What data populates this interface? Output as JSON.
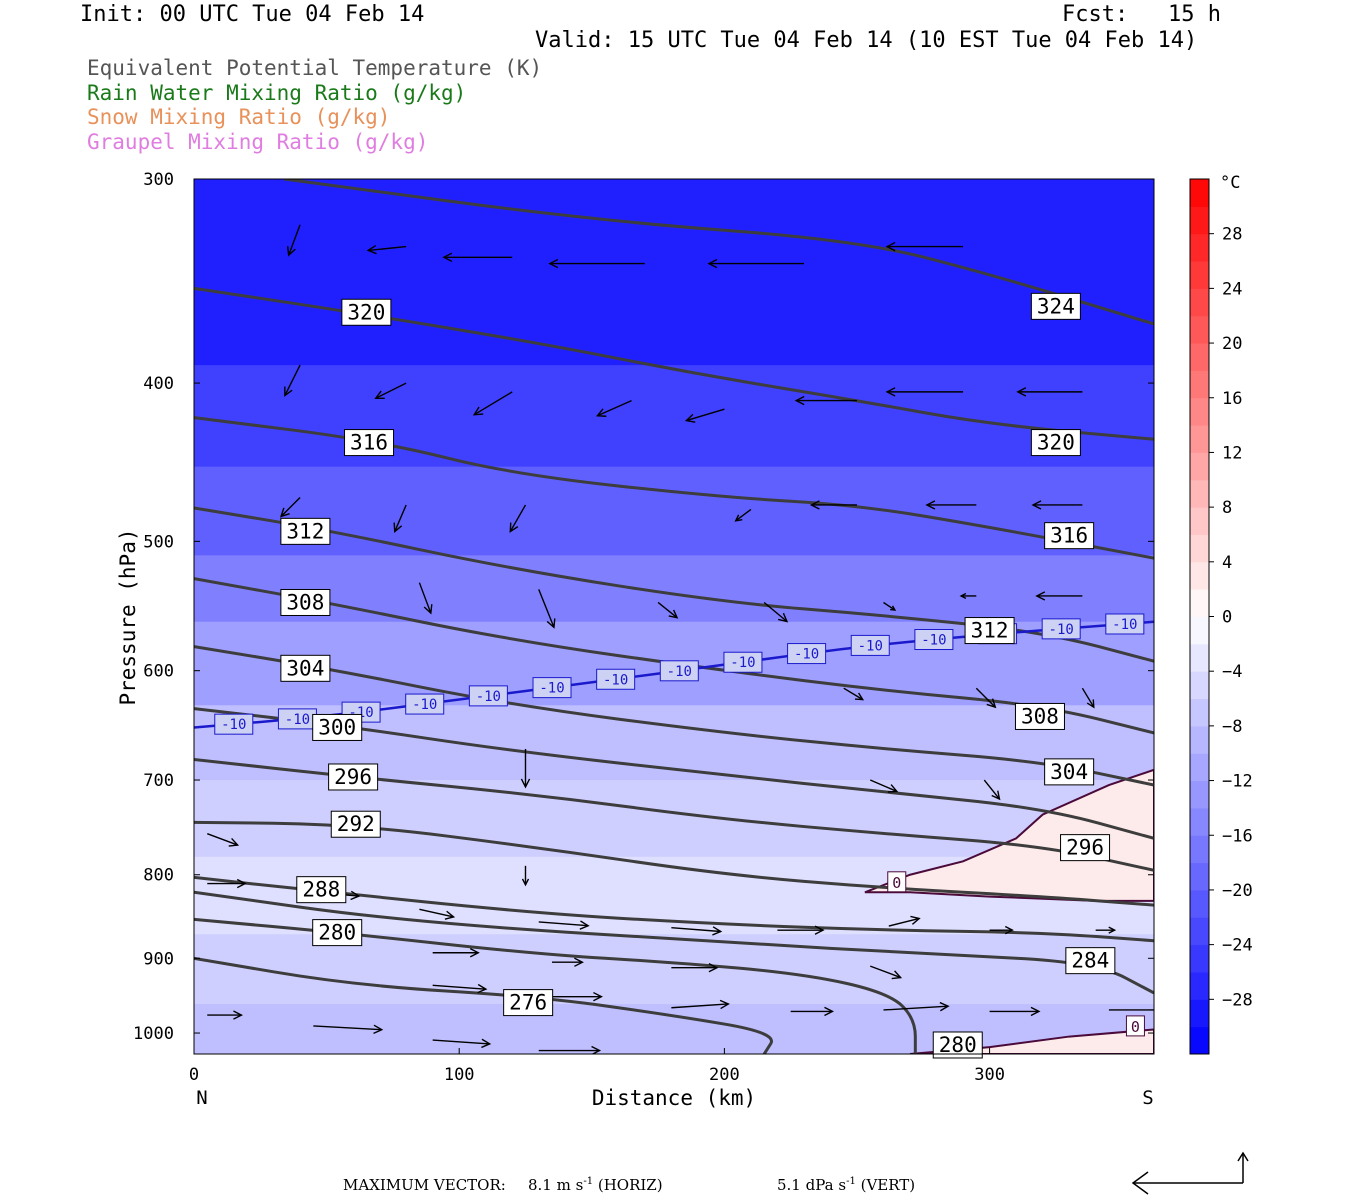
{
  "header": {
    "init": "Init: 00 UTC Tue 04 Feb 14",
    "fcst": "Fcst:   15 h",
    "valid": "Valid: 15 UTC Tue 04 Feb 14 (10 EST Tue 04 Feb 14)"
  },
  "fields": [
    {
      "label": "Equivalent Potential Temperature (K)",
      "color": "#555555"
    },
    {
      "label": "Rain Water Mixing Ratio (g/kg)",
      "color": "#1a7a1a"
    },
    {
      "label": "Snow Mixing Ratio (g/kg)",
      "color": "#e8915a"
    },
    {
      "label": "Graupel Mixing Ratio (g/kg)",
      "color": "#e07de0"
    }
  ],
  "footer": {
    "label": "MAXIMUM VECTOR:",
    "horiz_value": "8.1 m s",
    "horiz_exp": "-1",
    "horiz_unit": "(HORIZ)",
    "vert_value": "5.1 dPa s",
    "vert_exp": "-1",
    "vert_unit": "(VERT)"
  },
  "chart_data": {
    "type": "cross-section",
    "xlabel": "Distance (km)",
    "ylabel": "Pressure (hPa)",
    "xlim": [
      0,
      362
    ],
    "ylim": [
      300,
      1030
    ],
    "y_scale": "log",
    "x_ticks": [
      0,
      100,
      200,
      300
    ],
    "y_ticks": [
      300,
      400,
      500,
      600,
      700,
      800,
      900,
      1000
    ],
    "x_end_labels": {
      "left": "N",
      "right": "S"
    },
    "colorbar": {
      "unit": "°C",
      "levels": [
        -32,
        -30,
        -28,
        -26,
        -24,
        -22,
        -20,
        -18,
        -16,
        -14,
        -12,
        -10,
        -8,
        -6,
        -4,
        -2,
        0,
        2,
        4,
        6,
        8,
        10,
        12,
        14,
        16,
        18,
        20,
        22,
        24,
        26,
        28,
        30,
        32
      ],
      "tick_labels": [
        -28,
        -24,
        -20,
        -16,
        -12,
        -8,
        -4,
        0,
        4,
        8,
        12,
        16,
        20,
        24,
        28
      ],
      "cold_color": "#0000ff",
      "warm_color": "#ff0000"
    },
    "theta_e_isolines": [
      {
        "label": "324",
        "points": [
          [
            34,
            300
          ],
          [
            150,
            318
          ],
          [
            250,
            327
          ],
          [
            300,
            343
          ],
          [
            362,
            368
          ]
        ],
        "label_pos": [
          325,
          359
        ]
      },
      {
        "label": "320",
        "points": [
          [
            0,
            350
          ],
          [
            60,
            362
          ],
          [
            130,
            378
          ],
          [
            190,
            395
          ],
          [
            250,
            410
          ],
          [
            300,
            424
          ],
          [
            362,
            433
          ]
        ],
        "label_pos": [
          65,
          362
        ]
      },
      {
        "label": "320",
        "points": [],
        "label_pos": [
          325,
          435
        ]
      },
      {
        "label": "316",
        "points": [
          [
            0,
            420
          ],
          [
            70,
            434
          ],
          [
            120,
            455
          ],
          [
            200,
            470
          ],
          [
            250,
            475
          ],
          [
            300,
            490
          ],
          [
            362,
            512
          ]
        ],
        "label_pos": [
          66,
          435
        ]
      },
      {
        "label": "316",
        "points": [],
        "label_pos": [
          330,
          496
        ]
      },
      {
        "label": "312",
        "points": [
          [
            0,
            477
          ],
          [
            50,
            492
          ],
          [
            120,
            520
          ],
          [
            200,
            545
          ],
          [
            260,
            555
          ],
          [
            320,
            568
          ],
          [
            362,
            592
          ]
        ],
        "label_pos": [
          42,
          493
        ]
      },
      {
        "label": "312",
        "points": [],
        "label_pos": [
          300,
          567
        ]
      },
      {
        "label": "308",
        "points": [
          [
            0,
            527
          ],
          [
            50,
            545
          ],
          [
            120,
            575
          ],
          [
            200,
            600
          ],
          [
            260,
            617
          ],
          [
            320,
            630
          ],
          [
            362,
            655
          ]
        ],
        "label_pos": [
          42,
          545
        ]
      },
      {
        "label": "308",
        "points": [],
        "label_pos": [
          319,
          640
        ]
      },
      {
        "label": "304",
        "points": [
          [
            0,
            580
          ],
          [
            50,
            598
          ],
          [
            120,
            630
          ],
          [
            200,
            655
          ],
          [
            260,
            670
          ],
          [
            320,
            682
          ],
          [
            362,
            705
          ]
        ],
        "label_pos": [
          42,
          598
        ]
      },
      {
        "label": "304",
        "points": [],
        "label_pos": [
          330,
          692
        ]
      },
      {
        "label": "300",
        "points": [
          [
            0,
            633
          ],
          [
            55,
            648
          ],
          [
            120,
            672
          ],
          [
            200,
            695
          ],
          [
            260,
            712
          ],
          [
            320,
            728
          ],
          [
            362,
            760
          ]
        ],
        "label_pos": [
          54,
          650
        ]
      },
      {
        "label": "296",
        "points": [
          [
            0,
            680
          ],
          [
            60,
            697
          ],
          [
            130,
            715
          ],
          [
            200,
            740
          ],
          [
            260,
            755
          ],
          [
            320,
            768
          ],
          [
            362,
            795
          ]
        ],
        "label_pos": [
          60,
          697
        ]
      },
      {
        "label": "296",
        "points": [],
        "label_pos": [
          336,
          770
        ]
      },
      {
        "label": "292",
        "points": [
          [
            0,
            743
          ],
          [
            60,
            745
          ],
          [
            130,
            770
          ],
          [
            200,
            800
          ],
          [
            260,
            815
          ],
          [
            320,
            825
          ],
          [
            362,
            835
          ]
        ],
        "label_pos": [
          61,
          745
        ]
      },
      {
        "label": "288",
        "points": [
          [
            0,
            803
          ],
          [
            45,
            818
          ],
          [
            130,
            845
          ],
          [
            200,
            858
          ],
          [
            260,
            865
          ],
          [
            320,
            868
          ],
          [
            362,
            878
          ]
        ],
        "label_pos": [
          48,
          817
        ]
      },
      {
        "label": "280",
        "points": [
          [
            0,
            852
          ],
          [
            55,
            868
          ],
          [
            130,
            895
          ],
          [
            180,
            905
          ],
          [
            230,
            920
          ],
          [
            262,
            945
          ],
          [
            272,
            980
          ],
          [
            272,
            1030
          ]
        ],
        "label_pos": [
          54,
          868
        ]
      },
      {
        "label": "280",
        "points": [],
        "label_pos": [
          288,
          1017
        ]
      },
      {
        "label": "284",
        "points": [
          [
            0,
            820
          ],
          [
            80,
            855
          ],
          [
            200,
            880
          ],
          [
            280,
            895
          ],
          [
            340,
            905
          ],
          [
            362,
            945
          ]
        ],
        "label_pos": [
          338,
          903
        ]
      },
      {
        "label": "276",
        "points": [
          [
            0,
            900
          ],
          [
            60,
            935
          ],
          [
            130,
            950
          ],
          [
            180,
            975
          ],
          [
            220,
            1000
          ],
          [
            215,
            1030
          ]
        ],
        "label_pos": [
          126,
          958
        ]
      }
    ],
    "temp_minus10_line": {
      "label": "-10",
      "color": "#1a1acc",
      "points": [
        [
          0,
          650
        ],
        [
          50,
          640
        ],
        [
          100,
          625
        ],
        [
          150,
          610
        ],
        [
          200,
          595
        ],
        [
          250,
          580
        ],
        [
          300,
          570
        ],
        [
          362,
          560
        ]
      ]
    },
    "zero_isotherm_regions": [
      {
        "label": "0",
        "color": "#4a0a3a",
        "points": [
          [
            253,
            820
          ],
          [
            270,
            800
          ],
          [
            290,
            785
          ],
          [
            310,
            760
          ],
          [
            320,
            735
          ],
          [
            345,
            705
          ],
          [
            362,
            690
          ],
          [
            362,
            830
          ],
          [
            340,
            830
          ],
          [
            300,
            825
          ],
          [
            270,
            820
          ],
          [
            253,
            820
          ]
        ],
        "label_pos": [
          265,
          808
        ]
      },
      {
        "label": "0",
        "color": "#4a0a3a",
        "points": [
          [
            270,
            1030
          ],
          [
            300,
            1020
          ],
          [
            330,
            1005
          ],
          [
            362,
            995
          ],
          [
            362,
            1030
          ]
        ],
        "label_pos": [
          355,
          990
        ]
      }
    ],
    "color_field": [
      {
        "temp": -28,
        "p_top": 300,
        "p_bottom": 390
      },
      {
        "temp": -24,
        "p_top": 390,
        "p_bottom": 450
      },
      {
        "temp": -20,
        "p_top": 450,
        "p_bottom": 510
      },
      {
        "temp": -16,
        "p_top": 510,
        "p_bottom": 560
      },
      {
        "temp": -12,
        "p_top": 560,
        "p_bottom": 630
      },
      {
        "temp": -8,
        "p_top": 630,
        "p_bottom": 700
      },
      {
        "temp": -6,
        "p_top": 700,
        "p_bottom": 780
      },
      {
        "temp": -4,
        "p_top": 780,
        "p_bottom": 870
      },
      {
        "temp": -6,
        "p_top": 870,
        "p_bottom": 960
      },
      {
        "temp": -8,
        "p_top": 960,
        "p_bottom": 1030
      }
    ],
    "wind_vectors": [
      {
        "x": 40,
        "p": 320,
        "u": -0.3,
        "w": -0.8
      },
      {
        "x": 80,
        "p": 330,
        "u": -1.0,
        "w": -0.1
      },
      {
        "x": 120,
        "p": 335,
        "u": -1.8,
        "w": 0
      },
      {
        "x": 170,
        "p": 338,
        "u": -2.5,
        "w": 0
      },
      {
        "x": 230,
        "p": 338,
        "u": -2.5,
        "w": 0
      },
      {
        "x": 290,
        "p": 330,
        "u": -2.0,
        "w": 0
      },
      {
        "x": 40,
        "p": 390,
        "u": -0.4,
        "w": -0.8
      },
      {
        "x": 80,
        "p": 400,
        "u": -0.8,
        "w": -0.4
      },
      {
        "x": 120,
        "p": 405,
        "u": -1.0,
        "w": -0.6
      },
      {
        "x": 165,
        "p": 410,
        "u": -0.9,
        "w": -0.4
      },
      {
        "x": 200,
        "p": 415,
        "u": -1.0,
        "w": -0.3
      },
      {
        "x": 250,
        "p": 410,
        "u": -1.6,
        "w": 0
      },
      {
        "x": 290,
        "p": 405,
        "u": -2.0,
        "w": 0
      },
      {
        "x": 335,
        "p": 405,
        "u": -1.7,
        "w": 0
      },
      {
        "x": 40,
        "p": 470,
        "u": -0.5,
        "w": -0.5
      },
      {
        "x": 80,
        "p": 475,
        "u": -0.3,
        "w": -0.7
      },
      {
        "x": 125,
        "p": 475,
        "u": -0.4,
        "w": -0.7
      },
      {
        "x": 210,
        "p": 478,
        "u": -0.4,
        "w": -0.3
      },
      {
        "x": 250,
        "p": 475,
        "u": -1.2,
        "w": 0
      },
      {
        "x": 295,
        "p": 475,
        "u": -1.3,
        "w": 0
      },
      {
        "x": 335,
        "p": 475,
        "u": -1.3,
        "w": 0
      },
      {
        "x": 85,
        "p": 530,
        "u": 0.3,
        "w": -0.8
      },
      {
        "x": 130,
        "p": 535,
        "u": 0.4,
        "w": -1.0
      },
      {
        "x": 175,
        "p": 545,
        "u": 0.5,
        "w": -0.4
      },
      {
        "x": 215,
        "p": 545,
        "u": 0.6,
        "w": -0.5
      },
      {
        "x": 260,
        "p": 545,
        "u": 0.3,
        "w": -0.2
      },
      {
        "x": 295,
        "p": 540,
        "u": -0.4,
        "w": 0
      },
      {
        "x": 335,
        "p": 540,
        "u": -1.2,
        "w": 0
      },
      {
        "x": 245,
        "p": 615,
        "u": 0.5,
        "w": -0.3
      },
      {
        "x": 295,
        "p": 615,
        "u": 0.5,
        "w": -0.5
      },
      {
        "x": 335,
        "p": 615,
        "u": 0.3,
        "w": -0.5
      },
      {
        "x": 125,
        "p": 670,
        "u": 0,
        "w": -1.0
      },
      {
        "x": 255,
        "p": 700,
        "u": 0.7,
        "w": -0.3
      },
      {
        "x": 298,
        "p": 700,
        "u": 0.4,
        "w": -0.5
      },
      {
        "x": 5,
        "p": 755,
        "u": 0.8,
        "w": -0.3
      },
      {
        "x": 125,
        "p": 790,
        "u": 0,
        "w": -0.5
      },
      {
        "x": 5,
        "p": 810,
        "u": 1.0,
        "w": 0
      },
      {
        "x": 45,
        "p": 820,
        "u": 1.2,
        "w": -0.1
      },
      {
        "x": 85,
        "p": 840,
        "u": 0.9,
        "w": -0.2
      },
      {
        "x": 130,
        "p": 855,
        "u": 1.3,
        "w": -0.1
      },
      {
        "x": 180,
        "p": 862,
        "u": 1.3,
        "w": -0.1
      },
      {
        "x": 220,
        "p": 865,
        "u": 1.2,
        "w": 0
      },
      {
        "x": 262,
        "p": 860,
        "u": 0.8,
        "w": 0.2
      },
      {
        "x": 300,
        "p": 865,
        "u": 0.6,
        "w": 0
      },
      {
        "x": 340,
        "p": 865,
        "u": 0.5,
        "w": 0
      },
      {
        "x": 90,
        "p": 893,
        "u": 1.2,
        "w": 0
      },
      {
        "x": 135,
        "p": 905,
        "u": 0.8,
        "w": 0
      },
      {
        "x": 180,
        "p": 912,
        "u": 1.2,
        "w": 0
      },
      {
        "x": 255,
        "p": 910,
        "u": 0.8,
        "w": -0.3
      },
      {
        "x": 90,
        "p": 935,
        "u": 1.4,
        "w": -0.1
      },
      {
        "x": 135,
        "p": 950,
        "u": 1.3,
        "w": 0
      },
      {
        "x": 180,
        "p": 965,
        "u": 1.5,
        "w": 0.1
      },
      {
        "x": 225,
        "p": 970,
        "u": 1.1,
        "w": 0
      },
      {
        "x": 260,
        "p": 968,
        "u": 1.7,
        "w": 0.1
      },
      {
        "x": 300,
        "p": 970,
        "u": 1.3,
        "w": 0
      },
      {
        "x": 345,
        "p": 968,
        "u": 1.7,
        "w": 0
      },
      {
        "x": 5,
        "p": 975,
        "u": 0.9,
        "w": 0
      },
      {
        "x": 45,
        "p": 990,
        "u": 1.8,
        "w": -0.1
      },
      {
        "x": 90,
        "p": 1010,
        "u": 1.5,
        "w": -0.1
      },
      {
        "x": 130,
        "p": 1025,
        "u": 1.6,
        "w": 0
      }
    ]
  }
}
